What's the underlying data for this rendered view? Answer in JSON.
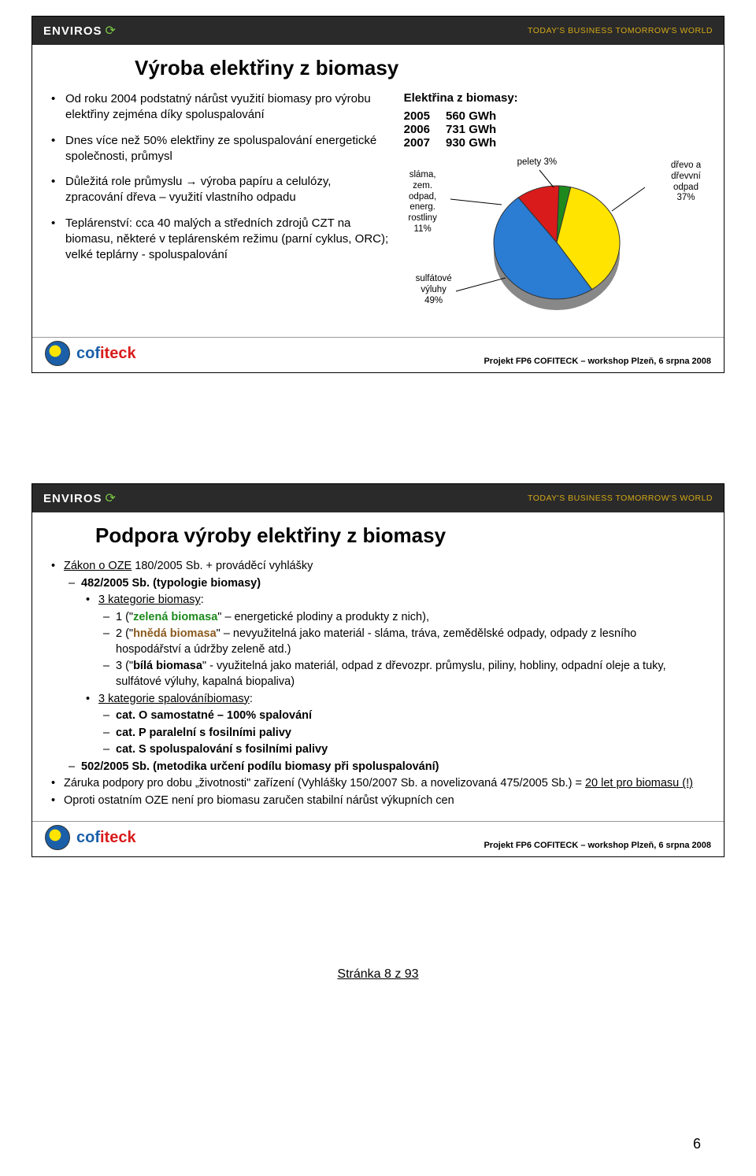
{
  "brand": {
    "name": "ENVIROS",
    "tagline": "TODAY'S BUSINESS TOMORROW'S WORLD"
  },
  "footer_project": "Projekt FP6 COFITECK – workshop Plzeň, 6 srpna 2008",
  "cofiteck": {
    "part1": "cof",
    "part2": "iteck"
  },
  "slide1": {
    "title": "Výroba elektřiny z biomasy",
    "bullets": [
      "Od roku 2004 podstatný nárůst využití biomasy pro výrobu elektřiny zejména díky spoluspalování",
      "Dnes více než 50% elektřiny ze spoluspalování energetické společnosti, průmysl",
      "Důležitá role průmyslu → výroba papíru a celulózy, zpracování dřeva – využití vlastního odpadu",
      "Teplárenství: cca 40 malých a středních zdrojů CZT na biomasu, některé v teplárenském režimu (parní cyklus, ORC); velké teplárny - spoluspalování"
    ],
    "stats_title": "Elektřina z biomasy:",
    "stats": [
      {
        "year": "2005",
        "value": "560 GWh"
      },
      {
        "year": "2006",
        "value": "731 GWh"
      },
      {
        "year": "2007",
        "value": "930 GWh"
      }
    ],
    "pie": {
      "slices": [
        {
          "name": "sulfátové výluhy",
          "label": "sulfátové\nvýluhy\n49%",
          "value": 49,
          "color": "#2b7cd3"
        },
        {
          "name": "dřevo a dřevní odpad",
          "label": "dřevo a\ndřevvní\nodpad\n37%",
          "value": 37,
          "color": "#ffe400"
        },
        {
          "name": "sláma, zem. odpad, energ. rostliny",
          "label": "sláma,\nzem.\nodpad,\nenerg.\nrostliny\n11%",
          "value": 11,
          "color": "#d91b1b"
        },
        {
          "name": "pelety",
          "label": "pelety 3%",
          "value": 3,
          "color": "#1e8a1e"
        }
      ],
      "border_color": "#333333",
      "background_color": "#ffffff"
    }
  },
  "slide2": {
    "title": "Podpora výroby elektřiny z biomasy",
    "l1a_prefix": "Zákon o OZE",
    "l1a_suffix": " 180/2005 Sb. + prováděcí vyhlášky",
    "l2a": "482/2005 Sb. (typologie biomasy)",
    "l3a": "3 kategorie biomasy",
    "cat1_a": "1 (\"",
    "cat1_b": "zelená biomasa",
    "cat1_c": "\" – energetické plodiny a produkty z nich),",
    "cat2_a": "2 (\"",
    "cat2_b": "hnědá biomasa",
    "cat2_c": "\" – nevyužitelná jako materiál - sláma, tráva, zemědělské odpady, odpady z lesního hospodářství a údržby zeleně atd.)",
    "cat3_a": "3 (\"",
    "cat3_b": "bílá biomasa",
    "cat3_c": "\" - využitelná jako materiál, odpad z dřevozpr. průmyslu, piliny, hobliny, odpadní oleje a tuky, sulfátové výluhy, kapalná biopaliva)",
    "l3b": "3 kategorie spalováníbiomasy",
    "burn1": "cat. O samostatné – 100% spalování",
    "burn2": "cat. P paralelní s fosilními palivy",
    "burn3": "cat. S spoluspalování s fosilními palivy",
    "l2b": "502/2005 Sb. (metodika určení podílu biomasy při spoluspalování)",
    "l1b_a": "Záruka podpory pro dobu „životnosti\" zařízení (Vyhlášky 150/2007 Sb. a novelizovaná 475/2005 Sb.) = ",
    "l1b_b": "20 let pro biomasu (!)",
    "l1c": "Oproti ostatním OZE není pro biomasu zaručen stabilní nárůst výkupních cen"
  },
  "page_label": "Stránka 8 z 93",
  "page_num": "6"
}
